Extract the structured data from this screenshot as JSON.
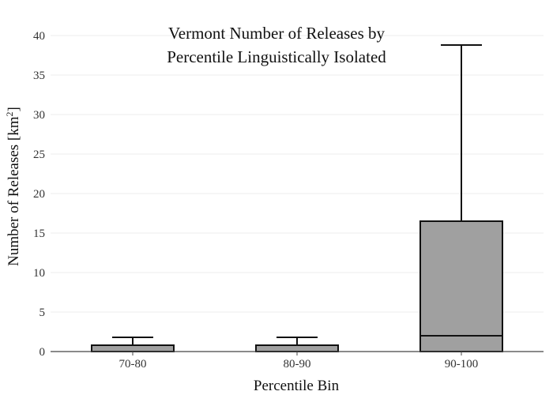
{
  "chart_data": {
    "type": "box",
    "title_lines": [
      "Vermont Number of Releases by",
      "Percentile Linguistically Isolated"
    ],
    "xlabel": "Percentile Bin",
    "ylabel_main": "Number of Releases  [km",
    "ylabel_sup": "2",
    "ylabel_end": "]",
    "ylim": [
      0,
      40
    ],
    "yticks": [
      0,
      5,
      10,
      15,
      20,
      25,
      30,
      35,
      40
    ],
    "grid": true,
    "box_fill": "#a0a0a0",
    "line_color": "#111111",
    "categories": [
      "70-80",
      "80-90",
      "90-100"
    ],
    "boxes": [
      {
        "category": "70-80",
        "min": 0,
        "q1": 0,
        "median": 0,
        "q3": 0.8,
        "max": 1.8
      },
      {
        "category": "80-90",
        "min": 0,
        "q1": 0,
        "median": 0,
        "q3": 0.8,
        "max": 1.8
      },
      {
        "category": "90-100",
        "min": 0,
        "q1": 0,
        "median": 2,
        "q3": 16.5,
        "max": 38.8
      }
    ]
  }
}
